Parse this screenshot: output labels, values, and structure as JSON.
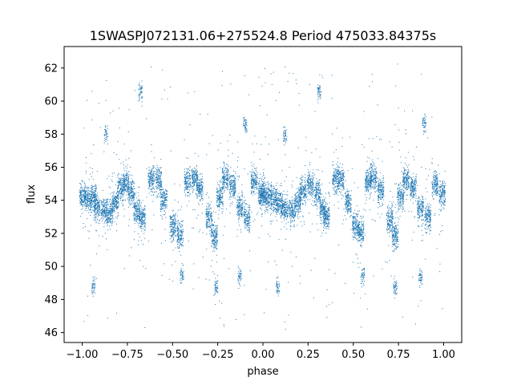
{
  "chart_data": {
    "type": "scatter",
    "title": "1SWASPJ072131.06+275524.8 Period 475033.84375s",
    "xlabel": "phase",
    "ylabel": "flux",
    "xlim": [
      -1.1,
      1.1
    ],
    "ylim": [
      45.4,
      63.3
    ],
    "xticks": [
      -1.0,
      -0.75,
      -0.5,
      -0.25,
      0.0,
      0.25,
      0.5,
      0.75,
      1.0
    ],
    "xtick_labels": [
      "−1.00",
      "−0.75",
      "−0.50",
      "−0.25",
      "0.00",
      "0.25",
      "0.50",
      "0.75",
      "1.00"
    ],
    "yticks": [
      46,
      48,
      50,
      52,
      54,
      56,
      58,
      60,
      62
    ],
    "ytick_labels": [
      "46",
      "48",
      "50",
      "52",
      "54",
      "56",
      "58",
      "60",
      "62"
    ],
    "grid": false,
    "legend": "none",
    "marker_color": "#1f77b4",
    "series": [
      {
        "phase_flux_bands": [
          [
            -1.0,
            54.2
          ],
          [
            -0.97,
            54.1
          ],
          [
            -0.94,
            54.3
          ],
          [
            -0.92,
            53.6
          ],
          [
            -0.88,
            53.4
          ],
          [
            -0.85,
            53.2
          ],
          [
            -0.82,
            53.9
          ],
          [
            -0.79,
            54.8
          ],
          [
            -0.76,
            55.1
          ],
          [
            -0.73,
            54.5
          ],
          [
            -0.7,
            53.3
          ],
          [
            -0.67,
            53.0
          ],
          [
            -0.62,
            55.3
          ],
          [
            -0.58,
            55.2
          ],
          [
            -0.55,
            54.0
          ],
          [
            -0.5,
            52.5
          ],
          [
            -0.46,
            52.0
          ],
          [
            -0.42,
            55.1
          ],
          [
            -0.38,
            55.3
          ],
          [
            -0.35,
            54.8
          ],
          [
            -0.3,
            53.0
          ],
          [
            -0.27,
            51.8
          ],
          [
            -0.24,
            54.2
          ],
          [
            -0.21,
            55.4
          ],
          [
            -0.17,
            54.9
          ],
          [
            -0.13,
            53.6
          ],
          [
            -0.09,
            53.0
          ],
          [
            -0.05,
            55.2
          ],
          [
            -0.01,
            54.5
          ],
          [
            0.0,
            54.3
          ],
          [
            0.03,
            54.2
          ],
          [
            0.06,
            54.1
          ],
          [
            0.09,
            53.8
          ],
          [
            0.12,
            53.5
          ],
          [
            0.16,
            53.4
          ],
          [
            0.19,
            54.0
          ],
          [
            0.22,
            54.6
          ],
          [
            0.26,
            55.0
          ],
          [
            0.3,
            54.4
          ],
          [
            0.33,
            53.4
          ],
          [
            0.35,
            53.0
          ],
          [
            0.4,
            55.4
          ],
          [
            0.43,
            55.2
          ],
          [
            0.47,
            53.9
          ],
          [
            0.51,
            52.5
          ],
          [
            0.54,
            52.1
          ],
          [
            0.58,
            55.1
          ],
          [
            0.61,
            55.4
          ],
          [
            0.65,
            54.6
          ],
          [
            0.7,
            52.9
          ],
          [
            0.73,
            51.8
          ],
          [
            0.76,
            54.3
          ],
          [
            0.79,
            55.3
          ],
          [
            0.83,
            54.8
          ],
          [
            0.87,
            53.5
          ],
          [
            0.91,
            53.0
          ],
          [
            0.95,
            55.0
          ],
          [
            0.99,
            54.4
          ]
        ],
        "outlier_clumps": [
          [
            -0.68,
            60.5
          ],
          [
            0.31,
            60.5
          ],
          [
            -0.87,
            58.0
          ],
          [
            0.12,
            58.0
          ],
          [
            -0.1,
            58.6
          ],
          [
            0.89,
            58.6
          ],
          [
            -0.94,
            48.8
          ],
          [
            0.08,
            48.8
          ],
          [
            -0.45,
            49.5
          ],
          [
            0.55,
            49.5
          ],
          [
            -0.26,
            48.8
          ],
          [
            0.73,
            48.8
          ],
          [
            -0.13,
            49.4
          ],
          [
            0.87,
            49.4
          ]
        ]
      }
    ]
  }
}
